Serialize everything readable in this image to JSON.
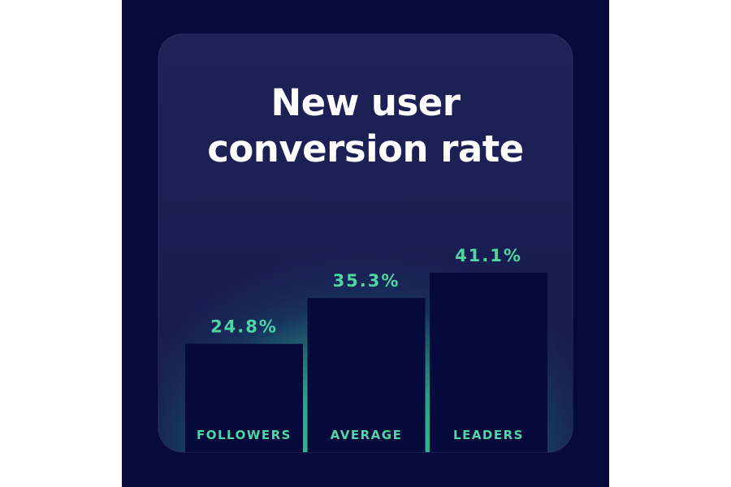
{
  "chart_data": {
    "type": "bar",
    "title": "New user conversion rate",
    "categories": [
      "FOLLOWERS",
      "AVERAGE",
      "LEADERS"
    ],
    "values": [
      24.8,
      35.3,
      41.1
    ],
    "value_labels": [
      "24.8%",
      "35.3%",
      "41.1%"
    ],
    "color": "#060a3b"
  }
}
